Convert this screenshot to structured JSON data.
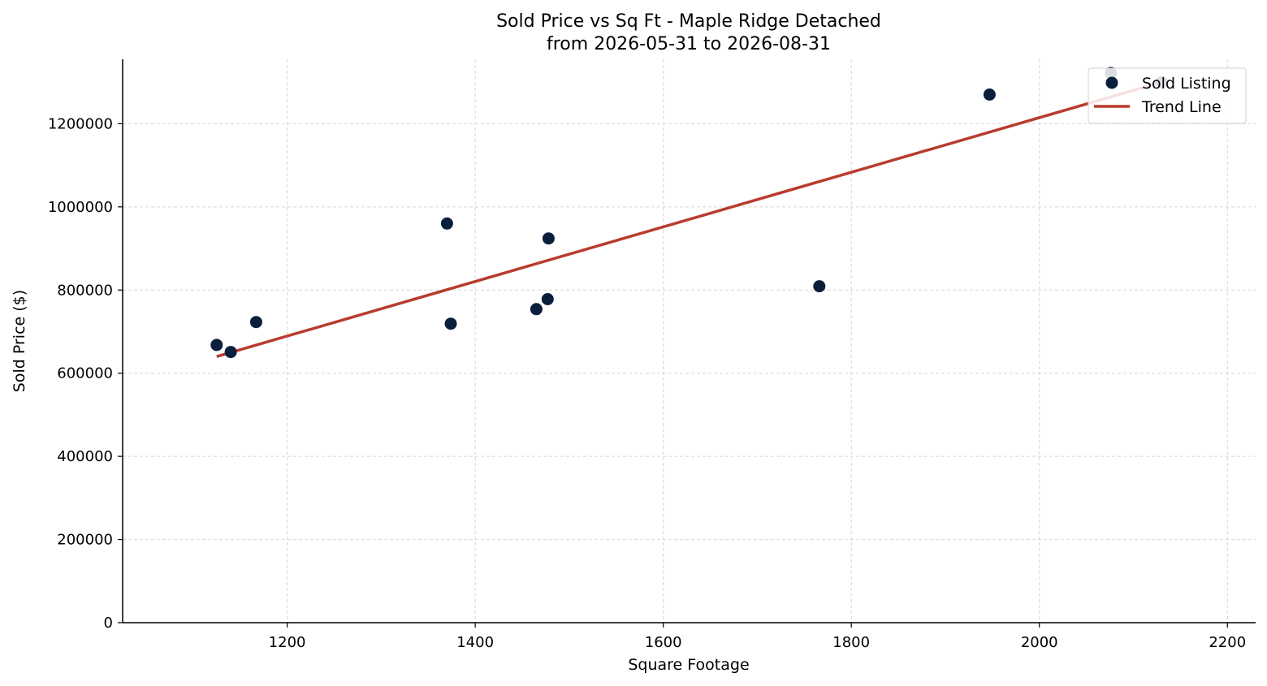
{
  "chart_data": {
    "type": "scatter",
    "title_line1": "Sold Price vs Sq Ft - Maple Ridge Detached",
    "title_line2": "from 2026-05-31 to 2026-08-31",
    "xlabel": "Square Footage",
    "ylabel": "Sold Price ($)",
    "xlim": [
      1025,
      2230
    ],
    "ylim": [
      0,
      1355000
    ],
    "x_ticks": [
      1200,
      1400,
      1600,
      1800,
      2000,
      2200
    ],
    "y_ticks": [
      0,
      200000,
      400000,
      600000,
      800000,
      1000000,
      1200000
    ],
    "grid": true,
    "legend_position": "top-right",
    "series": [
      {
        "name": "Sold Listing",
        "kind": "scatter",
        "color": "#0a1f3c",
        "points": [
          {
            "x": 1125,
            "y": 668000
          },
          {
            "x": 1140,
            "y": 651000
          },
          {
            "x": 1167,
            "y": 723000
          },
          {
            "x": 1370,
            "y": 960000
          },
          {
            "x": 1374,
            "y": 719000
          },
          {
            "x": 1465,
            "y": 754000
          },
          {
            "x": 1477,
            "y": 778000
          },
          {
            "x": 1478,
            "y": 924000
          },
          {
            "x": 1766,
            "y": 809000
          },
          {
            "x": 1947,
            "y": 1270000
          },
          {
            "x": 2076,
            "y": 1322000
          },
          {
            "x": 2130,
            "y": 1300000
          }
        ]
      },
      {
        "name": "Trend Line",
        "kind": "line",
        "color": "#b83c2e",
        "points": [
          {
            "x": 1125,
            "y": 640000
          },
          {
            "x": 2130,
            "y": 1300000
          }
        ]
      }
    ]
  }
}
